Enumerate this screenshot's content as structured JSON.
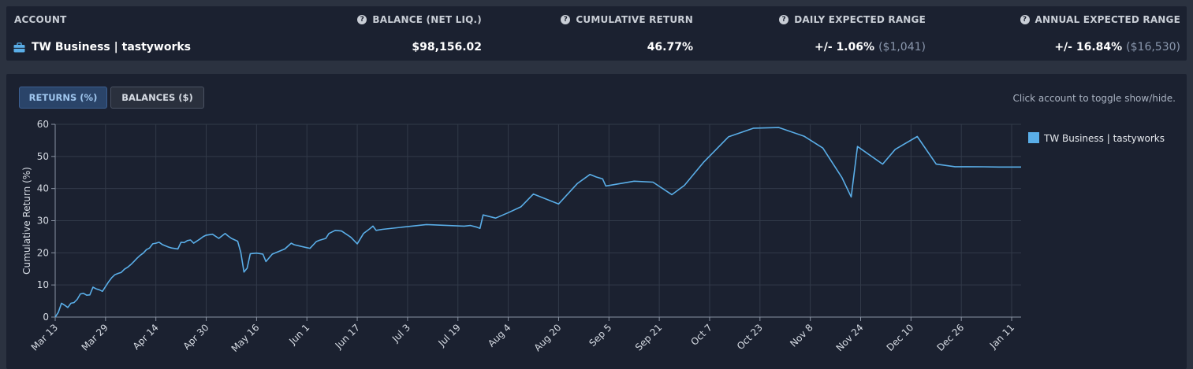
{
  "summary": {
    "account_header": "ACCOUNT",
    "balance_header": "BALANCE (NET LIQ.)",
    "return_header": "CUMULATIVE RETURN",
    "daily_header": "DAILY EXPECTED RANGE",
    "annual_header": "ANNUAL EXPECTED RANGE",
    "account_name": "TW Business | tastyworks",
    "balance": "$98,156.02",
    "cumulative_return": "46.77%",
    "daily_range": "+/- 1.06%",
    "daily_range_dollars": "($1,041)",
    "annual_range": "+/- 16.84%",
    "annual_range_dollars": "($16,530)",
    "help_icon_glyph": "?",
    "colors": {
      "return_positive": "#5ec46a",
      "accent": "#5aaee8"
    }
  },
  "toolbar": {
    "returns_label": "RETURNS (%)",
    "balances_label": "BALANCES ($)",
    "hint": "Click account to toggle show/hide."
  },
  "chart_data": {
    "type": "line",
    "title": "",
    "xlabel": "",
    "ylabel": "Cumulative Return (%)",
    "ylim": [
      0,
      60
    ],
    "yticks": [
      0,
      10,
      20,
      30,
      40,
      50,
      60
    ],
    "x_tick_labels": [
      "Mar 13",
      "Mar 29",
      "Apr 14",
      "Apr 30",
      "May 16",
      "Jun 1",
      "Jun 17",
      "Jul 3",
      "Jul 19",
      "Aug 4",
      "Aug 20",
      "Sep 5",
      "Sep 21",
      "Oct 7",
      "Oct 23",
      "Nov 8",
      "Nov 24",
      "Dec 10",
      "Dec 26",
      "Jan 11"
    ],
    "x_tick_days": [
      0,
      16,
      32,
      48,
      64,
      80,
      96,
      112,
      128,
      144,
      160,
      176,
      192,
      208,
      224,
      240,
      256,
      272,
      288,
      304
    ],
    "xlim_days": [
      0,
      307
    ],
    "grid": true,
    "legend_position": "right",
    "series": [
      {
        "name": "TW Business | tastyworks",
        "color": "#5aaee8",
        "x_days": [
          0,
          1,
          2,
          3,
          4,
          5,
          6,
          7,
          8,
          9,
          10,
          11,
          12,
          13,
          14,
          15,
          17,
          18,
          19,
          20,
          21,
          22,
          23,
          24,
          25,
          26,
          27,
          28,
          29,
          30,
          31,
          32,
          33,
          34,
          36,
          37,
          39,
          40,
          41,
          42,
          43,
          44,
          46,
          47,
          48,
          50,
          52,
          54,
          55,
          56,
          58,
          59,
          60,
          61,
          62,
          63,
          64,
          66,
          67,
          69,
          73,
          75,
          76,
          80,
          81,
          83,
          84,
          86,
          87,
          89,
          91,
          93,
          94,
          96,
          98,
          100,
          101,
          102,
          104,
          118,
          130,
          132,
          134,
          135,
          136,
          140,
          144,
          148,
          152,
          160,
          166,
          170,
          172,
          174,
          175,
          184,
          190,
          196,
          200,
          206,
          214,
          222,
          230,
          238,
          244,
          250,
          253,
          255,
          263,
          267,
          274,
          280,
          286,
          290,
          295,
          300,
          307
        ],
        "y": [
          0,
          1.5,
          4.3,
          3.7,
          3.0,
          4.3,
          4.5,
          5.5,
          7.2,
          7.4,
          6.8,
          6.9,
          9.3,
          8.8,
          8.5,
          8.0,
          11.0,
          12.3,
          13.2,
          13.6,
          13.9,
          14.9,
          15.5,
          16.3,
          17.3,
          18.3,
          19.2,
          19.9,
          21.0,
          21.5,
          22.8,
          23.0,
          23.3,
          22.6,
          21.8,
          21.5,
          21.2,
          23.3,
          23.2,
          23.8,
          24.0,
          23.0,
          24.3,
          25.0,
          25.5,
          25.8,
          24.5,
          26.0,
          25.2,
          24.5,
          23.6,
          20.1,
          14.0,
          15.2,
          19.7,
          19.8,
          19.9,
          19.6,
          17.3,
          19.6,
          21.2,
          23.0,
          22.5,
          21.6,
          21.4,
          23.5,
          23.9,
          24.5,
          26.0,
          27.0,
          26.8,
          25.5,
          24.8,
          22.8,
          26.0,
          27.5,
          28.3,
          27.0,
          27.3,
          28.8,
          28.3,
          28.5,
          28.0,
          27.6,
          31.8,
          30.8,
          32.5,
          34.3,
          38.3,
          35.2,
          41.6,
          44.4,
          43.6,
          43.0,
          40.8,
          42.3,
          42.0,
          38.1,
          41.0,
          48.1,
          56.1,
          58.8,
          59.0,
          56.3,
          52.6,
          43.5,
          37.4,
          53.1,
          47.6,
          52.2,
          56.2,
          47.6,
          46.8,
          46.8,
          46.77,
          46.7,
          46.7
        ]
      }
    ]
  }
}
